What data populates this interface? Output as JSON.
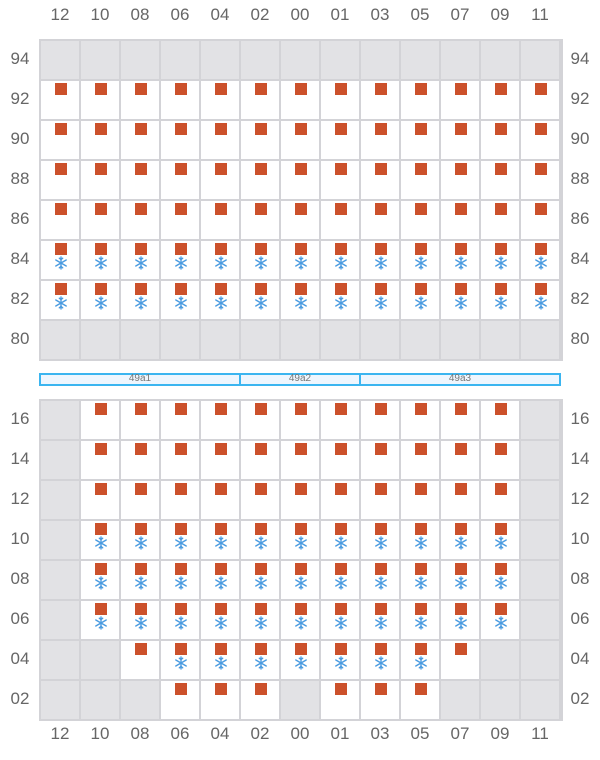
{
  "columns": [
    "12",
    "10",
    "08",
    "06",
    "04",
    "02",
    "00",
    "01",
    "03",
    "05",
    "07",
    "09",
    "11"
  ],
  "upper": {
    "rows": [
      {
        "label": "94",
        "cells": [
          "g",
          "g",
          "g",
          "g",
          "g",
          "g",
          "g",
          "g",
          "g",
          "g",
          "g",
          "g",
          "g"
        ]
      },
      {
        "label": "92",
        "cells": [
          "s",
          "s",
          "s",
          "s",
          "s",
          "s",
          "s",
          "s",
          "s",
          "s",
          "s",
          "s",
          "s"
        ]
      },
      {
        "label": "90",
        "cells": [
          "s",
          "s",
          "s",
          "s",
          "s",
          "s",
          "s",
          "s",
          "s",
          "s",
          "s",
          "s",
          "s"
        ]
      },
      {
        "label": "88",
        "cells": [
          "s",
          "s",
          "s",
          "s",
          "s",
          "s",
          "s",
          "s",
          "s",
          "s",
          "s",
          "s",
          "s"
        ]
      },
      {
        "label": "86",
        "cells": [
          "s",
          "s",
          "s",
          "s",
          "s",
          "s",
          "s",
          "s",
          "s",
          "s",
          "s",
          "s",
          "s"
        ]
      },
      {
        "label": "84",
        "cells": [
          "sf",
          "sf",
          "sf",
          "sf",
          "sf",
          "sf",
          "sf",
          "sf",
          "sf",
          "sf",
          "sf",
          "sf",
          "sf"
        ]
      },
      {
        "label": "82",
        "cells": [
          "sf",
          "sf",
          "sf",
          "sf",
          "sf",
          "sf",
          "sf",
          "sf",
          "sf",
          "sf",
          "sf",
          "sf",
          "sf"
        ]
      },
      {
        "label": "80",
        "cells": [
          "g",
          "g",
          "g",
          "g",
          "g",
          "g",
          "g",
          "g",
          "g",
          "g",
          "g",
          "g",
          "g"
        ]
      }
    ]
  },
  "hatches": [
    {
      "label": "49a1",
      "span": 5
    },
    {
      "label": "49a2",
      "span": 3
    },
    {
      "label": "49a3",
      "span": 5
    }
  ],
  "lower": {
    "rows": [
      {
        "label": "16",
        "cells": [
          "g",
          "s",
          "s",
          "s",
          "s",
          "s",
          "s",
          "s",
          "s",
          "s",
          "s",
          "s",
          "g"
        ]
      },
      {
        "label": "14",
        "cells": [
          "g",
          "s",
          "s",
          "s",
          "s",
          "s",
          "s",
          "s",
          "s",
          "s",
          "s",
          "s",
          "g"
        ]
      },
      {
        "label": "12",
        "cells": [
          "g",
          "s",
          "s",
          "s",
          "s",
          "s",
          "s",
          "s",
          "s",
          "s",
          "s",
          "s",
          "g"
        ]
      },
      {
        "label": "10",
        "cells": [
          "g",
          "sf",
          "sf",
          "sf",
          "sf",
          "sf",
          "sf",
          "sf",
          "sf",
          "sf",
          "sf",
          "sf",
          "g"
        ]
      },
      {
        "label": "08",
        "cells": [
          "g",
          "sf",
          "sf",
          "sf",
          "sf",
          "sf",
          "sf",
          "sf",
          "sf",
          "sf",
          "sf",
          "sf",
          "g"
        ]
      },
      {
        "label": "06",
        "cells": [
          "g",
          "sf",
          "sf",
          "sf",
          "sf",
          "sf",
          "sf",
          "sf",
          "sf",
          "sf",
          "sf",
          "sf",
          "g"
        ]
      },
      {
        "label": "04",
        "cells": [
          "g",
          "g",
          "s",
          "sf",
          "sf",
          "sf",
          "sf",
          "sf",
          "sf",
          "sf",
          "s",
          "g",
          "g"
        ]
      },
      {
        "label": "02",
        "cells": [
          "g",
          "g",
          "g",
          "s",
          "s",
          "s",
          "g",
          "s",
          "s",
          "s",
          "g",
          "g",
          "g"
        ]
      }
    ]
  },
  "colors": {
    "container": "#cc512b",
    "reefer": "#4a9be0",
    "hatch": "#3bb5f0",
    "empty_slot": "#e2e2e5"
  }
}
